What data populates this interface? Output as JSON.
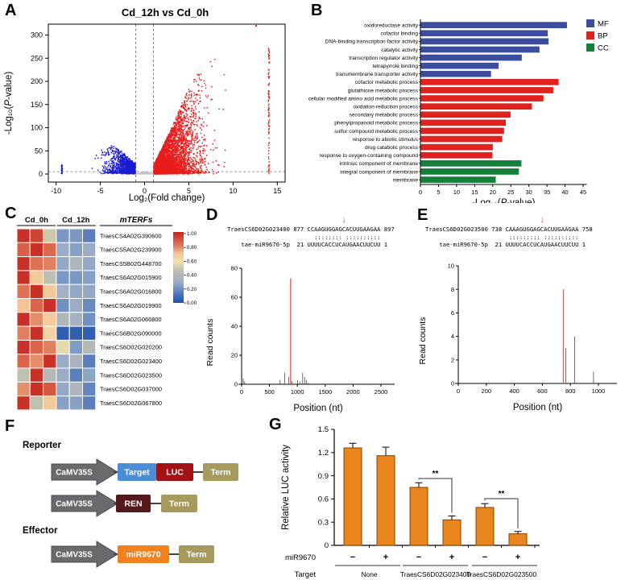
{
  "panel_labels": {
    "A": "A",
    "B": "B",
    "C": "C",
    "D": "D",
    "E": "E",
    "F": "F",
    "G": "G"
  },
  "labels": {
    "neglog_prefix": "-Log₁₀(",
    "p_italic": "P",
    "neglog_suffix": "-value)"
  },
  "chart_data": {
    "volcano": {
      "type": "scatter",
      "title": "Cd_12h vs Cd_0h",
      "xlabel": "Log₂(Fold change)",
      "xticks": [
        -10,
        -5,
        0,
        5,
        10,
        15
      ],
      "yticks": [
        0,
        50,
        100,
        150,
        200,
        250,
        300
      ],
      "xlim": [
        -10.7,
        15.7
      ],
      "ylim": [
        0,
        335
      ],
      "vlines": [
        -1,
        1
      ],
      "hline": 5,
      "colors": {
        "up": "#e81c1c",
        "down": "#1b1bd4",
        "ns": "#c4c4c4"
      },
      "seed": 42,
      "down_cluster": {
        "count": 1200,
        "edge": -1.05,
        "sigma": 1.55,
        "min": -9.6,
        "env_center": -3.8,
        "env_var": 7.2,
        "env_peak": 58
      },
      "up_cluster": {
        "count": 4500,
        "edge": 1.05,
        "sigma": 2.35,
        "max": 13.3,
        "envelope": [
          [
            1,
            15
          ],
          [
            2,
            55
          ],
          [
            3,
            95
          ],
          [
            4,
            140
          ],
          [
            5,
            185
          ],
          [
            6,
            215
          ],
          [
            7,
            240
          ],
          [
            8,
            262
          ],
          [
            9,
            278
          ],
          [
            10,
            295
          ],
          [
            11,
            305
          ],
          [
            12,
            315
          ],
          [
            13.3,
            322
          ]
        ]
      },
      "ns_cluster": {
        "count": 350,
        "half_width": 1.05,
        "peak": 4.5
      },
      "up_column": {
        "x": 14.05,
        "y_max": 272,
        "count": 90
      },
      "down_column": {
        "x": -9.35,
        "y_max": 20,
        "count": 25
      },
      "max_point": [
        12.6,
        320
      ]
    },
    "go": {
      "type": "bar",
      "orientation": "horizontal",
      "xticks": [
        0,
        5,
        10,
        15,
        20,
        25,
        30,
        35,
        40,
        45
      ],
      "xlim": [
        0,
        46
      ],
      "legend": [
        {
          "label": "MF",
          "color": "#3c4d9e"
        },
        {
          "label": "BP",
          "color": "#e0211d"
        },
        {
          "label": "CC",
          "color": "#15803a"
        }
      ],
      "bars": [
        {
          "label": "oxidoreductase activity",
          "value": 40.6,
          "group": "MF"
        },
        {
          "label": "cofactor binding",
          "value": 35.3,
          "group": "MF"
        },
        {
          "label": "DNA-binding transcription factor activity",
          "value": 35.5,
          "group": "MF"
        },
        {
          "label": "catalytic activity",
          "value": 33.0,
          "group": "MF"
        },
        {
          "label": "transcription regulator activity",
          "value": 28.1,
          "group": "MF"
        },
        {
          "label": "tetrapyrrole binding",
          "value": 21.7,
          "group": "MF"
        },
        {
          "label": "transmembrane transporter activity",
          "value": 19.6,
          "group": "MF"
        },
        {
          "label": "cofactor metabolic process",
          "value": 38.3,
          "group": "BP"
        },
        {
          "label": "glutathione metabolic process",
          "value": 36.8,
          "group": "BP"
        },
        {
          "label": "cellular modified amino acid metabolic process",
          "value": 34.1,
          "group": "BP"
        },
        {
          "label": "oxidation-reduction process",
          "value": 30.9,
          "group": "BP"
        },
        {
          "label": "secondary metabolic process",
          "value": 25.0,
          "group": "BP"
        },
        {
          "label": "phenylpropanoid metabolic process",
          "value": 23.7,
          "group": "BP"
        },
        {
          "label": "sulfur compound metabolic process",
          "value": 23.2,
          "group": "BP"
        },
        {
          "label": "response to abiotic stimulus",
          "value": 22.7,
          "group": "BP"
        },
        {
          "label": "drug catabolic process",
          "value": 20.1,
          "group": "BP"
        },
        {
          "label": "response to oxygen-containing compound",
          "value": 20.0,
          "group": "BP"
        },
        {
          "label": "intrinsic component of membrane",
          "value": 28.0,
          "group": "CC"
        },
        {
          "label": "integral component of membrane",
          "value": 27.3,
          "group": "CC"
        },
        {
          "label": "membrane",
          "value": 20.9,
          "group": "CC"
        }
      ]
    },
    "heatmap": {
      "type": "heatmap",
      "col_groups": [
        "Cd_0h",
        "Cd_12h"
      ],
      "gene_header": "mTERFs",
      "rows": [
        "TraesCS4A02G390600",
        "TraesCS5A02G239900",
        "TraesCS5B02G448700",
        "TraesCS6A02G015900",
        "TraesCS6A02G016800",
        "TraesCS6A02G019900",
        "TraesCS6A02G066800",
        "TraesCS6B02G090000",
        "TraesCS6D02G020200",
        "TraesCS6D02G023400",
        "TraesCS6D02G023500",
        "TraesCS6D02G037000",
        "TraesCS6D02G067800"
      ],
      "values": [
        [
          0.97,
          0.93,
          0.5,
          0.22,
          0.22,
          0.15
        ],
        [
          0.86,
          0.97,
          0.84,
          0.3,
          0.25,
          0.3
        ],
        [
          0.97,
          0.82,
          0.8,
          0.28,
          0.38,
          0.28
        ],
        [
          0.97,
          0.68,
          0.45,
          0.22,
          0.22,
          0.25
        ],
        [
          0.82,
          0.97,
          0.68,
          0.32,
          0.28,
          0.28
        ],
        [
          0.7,
          0.85,
          0.97,
          0.2,
          0.3,
          0.18
        ],
        [
          0.97,
          0.78,
          0.67,
          0.4,
          0.33,
          0.2
        ],
        [
          0.8,
          0.97,
          0.64,
          0.05,
          0.05,
          0.05
        ],
        [
          0.97,
          0.85,
          0.8,
          0.55,
          0.23,
          0.42
        ],
        [
          0.85,
          0.78,
          0.97,
          0.3,
          0.36,
          0.15
        ],
        [
          0.46,
          0.97,
          0.42,
          0.3,
          0.15,
          0.27
        ],
        [
          0.78,
          0.97,
          0.88,
          0.28,
          0.38,
          0.17
        ],
        [
          0.97,
          0.46,
          0.68,
          0.25,
          0.25,
          0.15
        ]
      ],
      "colorbar_ticks": [
        "1.00",
        "0.80",
        "0.60",
        "0.40",
        "0.20",
        "0.00"
      ],
      "colormap": [
        [
          0,
          "#1b50a8"
        ],
        [
          0.12,
          "#4d74ba"
        ],
        [
          0.22,
          "#7b98c5"
        ],
        [
          0.32,
          "#a3b1c6"
        ],
        [
          0.42,
          "#b2b9b6"
        ],
        [
          0.5,
          "#ccc9a8"
        ],
        [
          0.58,
          "#f4e2b2"
        ],
        [
          0.7,
          "#f2c497"
        ],
        [
          0.82,
          "#dd7354"
        ],
        [
          1,
          "#c3241f"
        ]
      ]
    },
    "degradome_D": {
      "type": "bar",
      "alignment_lines": [
        "TraesCS6D02G023400 877 CCAAGUGGAGCACUUGAAGAA 897",
        "                         :::::::: ::::::::::",
        "    tae-miR9670-5p  21 UUUUCACCUCAUGAACUUCUU 1"
      ],
      "arrow_char": 34,
      "ylabel": "Read counts",
      "xlabel": "Position (nt)",
      "yticks": [
        0,
        20,
        40,
        60,
        80
      ],
      "xticks": [
        0,
        500,
        1000,
        1500,
        2000,
        2500
      ],
      "xlim": [
        0,
        2750
      ],
      "ylim": [
        0,
        80
      ],
      "spikes": [
        {
          "x": 30,
          "y": 4
        },
        {
          "x": 55,
          "y": 2
        },
        {
          "x": 690,
          "y": 3
        },
        {
          "x": 775,
          "y": 8
        },
        {
          "x": 845,
          "y": 5
        },
        {
          "x": 880,
          "y": 73,
          "red": true
        },
        {
          "x": 905,
          "y": 2
        },
        {
          "x": 1005,
          "y": 3
        },
        {
          "x": 1045,
          "y": 2
        },
        {
          "x": 1095,
          "y": 8
        },
        {
          "x": 1130,
          "y": 5
        },
        {
          "x": 1160,
          "y": 3
        },
        {
          "x": 1195,
          "y": 1
        }
      ]
    },
    "degradome_E": {
      "type": "bar",
      "alignment_lines": [
        "TraesCS6D02G023500 738 CAAAGUGGAGCACUUGAAGAA 758",
        "                        ::::::::: ::::::::::",
        "    tae-miR9670-5p  21 UUUUCACCUCAUGAACUUCUU 1"
      ],
      "arrow_char": 34,
      "ylabel": "Read counts",
      "xlabel": "Position (nt)",
      "yticks": [
        0,
        2,
        4,
        6,
        8,
        10
      ],
      "xticks": [
        0,
        200,
        400,
        600,
        800,
        1000
      ],
      "xlim": [
        0,
        1120
      ],
      "ylim": [
        0,
        10
      ],
      "spikes": [
        {
          "x": 750,
          "y": 8,
          "red": true
        },
        {
          "x": 768,
          "y": 3
        },
        {
          "x": 830,
          "y": 4
        },
        {
          "x": 965,
          "y": 1
        }
      ]
    },
    "constructs": {
      "reporter_label": "Reporter",
      "effector_label": "Effector",
      "promoter_label": "CaMV35S",
      "term_label": "Term",
      "promoter_color": "#696a6d",
      "term_color": "#a69a5f",
      "rows": [
        {
          "boxes": [
            {
              "label": "Target",
              "color": "#4b8ed5"
            },
            {
              "label": "LUC",
              "color": "#a21217"
            }
          ]
        },
        {
          "boxes": [
            {
              "label": "REN",
              "color": "#54181b"
            }
          ]
        },
        {
          "boxes": [
            {
              "label": "miR9670",
              "color": "#f28220"
            }
          ]
        }
      ]
    },
    "luc": {
      "type": "bar",
      "ylabel": "Relative LUC activity",
      "yticks": [
        "0",
        "0.3",
        "0.6",
        "0.9",
        "1.2",
        "1.5"
      ],
      "ytick_values": [
        0,
        0.3,
        0.6,
        0.9,
        1.2,
        1.5
      ],
      "bar_color": "#e8851c",
      "bar_edge": "#8a4500",
      "bars": [
        {
          "mir": "−",
          "value": 1.26,
          "err": 0.06
        },
        {
          "mir": "+",
          "value": 1.16,
          "err": 0.11
        },
        {
          "mir": "−",
          "value": 0.75,
          "err": 0.06
        },
        {
          "mir": "+",
          "value": 0.33,
          "err": 0.05
        },
        {
          "mir": "−",
          "value": 0.49,
          "err": 0.05
        },
        {
          "mir": "+",
          "value": 0.15,
          "err": 0.03
        }
      ],
      "groups": [
        "None",
        "TraesCS6D02G023400",
        "TraesCS6D02G023500"
      ],
      "sig_label": "**",
      "mir_row_label": "miR9670",
      "target_row_label": "Target"
    }
  }
}
